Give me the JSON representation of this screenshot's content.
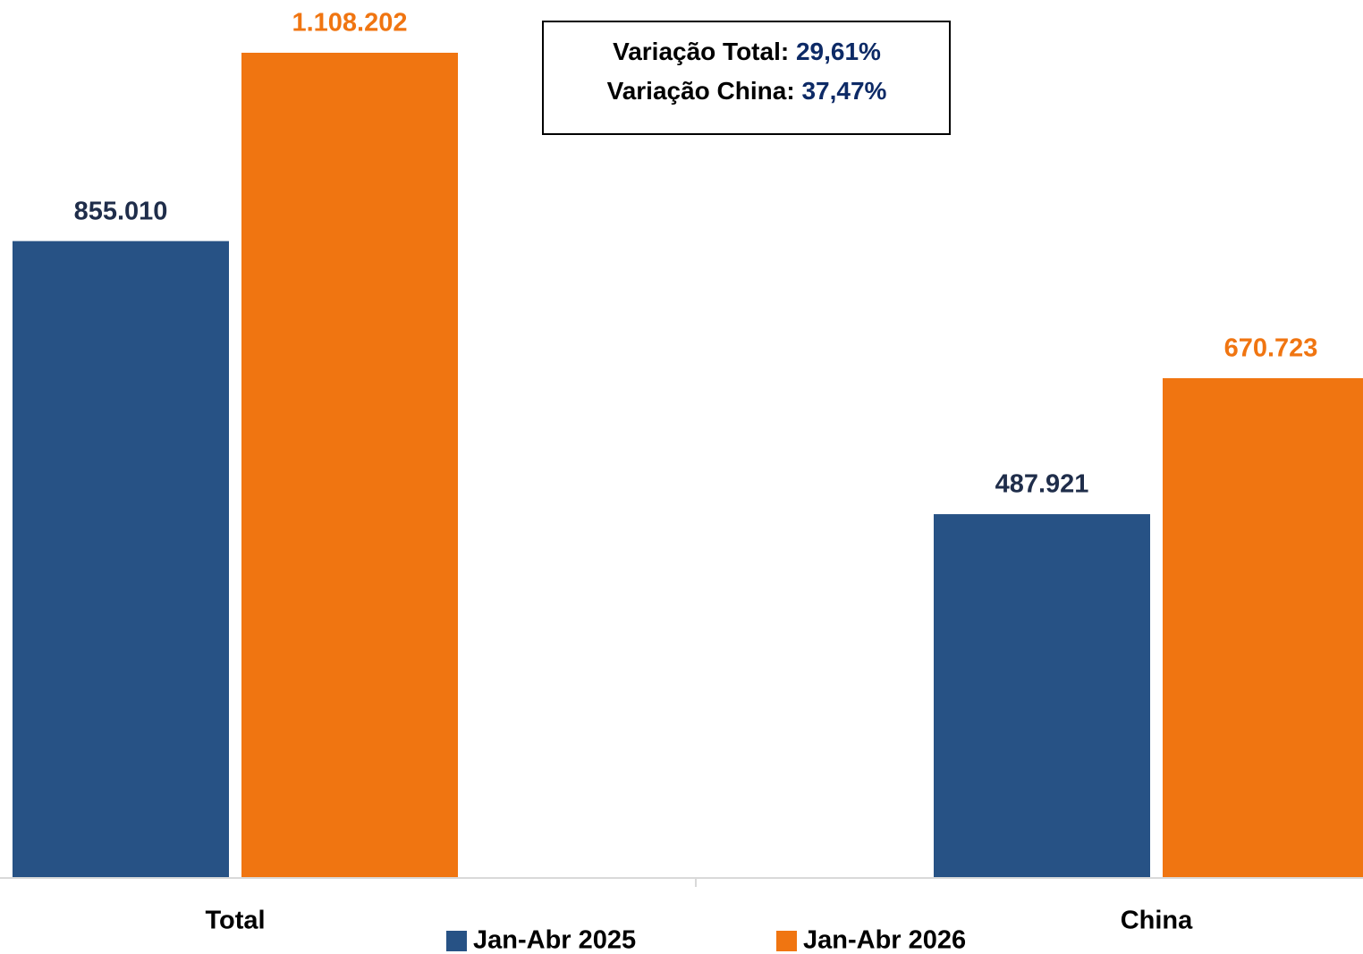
{
  "chart_data": {
    "type": "bar",
    "categories": [
      "Total",
      "China"
    ],
    "series": [
      {
        "name": "Jan-Abr 2025",
        "color": "#275285",
        "values": [
          855010,
          487921
        ],
        "value_labels": [
          "855.010",
          "487.921"
        ],
        "label_color": "#1f2d4a"
      },
      {
        "name": "Jan-Abr 2026",
        "color": "#f07511",
        "values": [
          1108202,
          670723
        ],
        "value_labels": [
          "1.108.202",
          "670.723"
        ],
        "label_color": "#f07511"
      }
    ],
    "annotations": [
      {
        "text": "Variação Total:",
        "value": "29,61%"
      },
      {
        "text": "Variação China:",
        "value": "37,47%"
      }
    ],
    "annotation_value_color": "#0d2a66"
  }
}
